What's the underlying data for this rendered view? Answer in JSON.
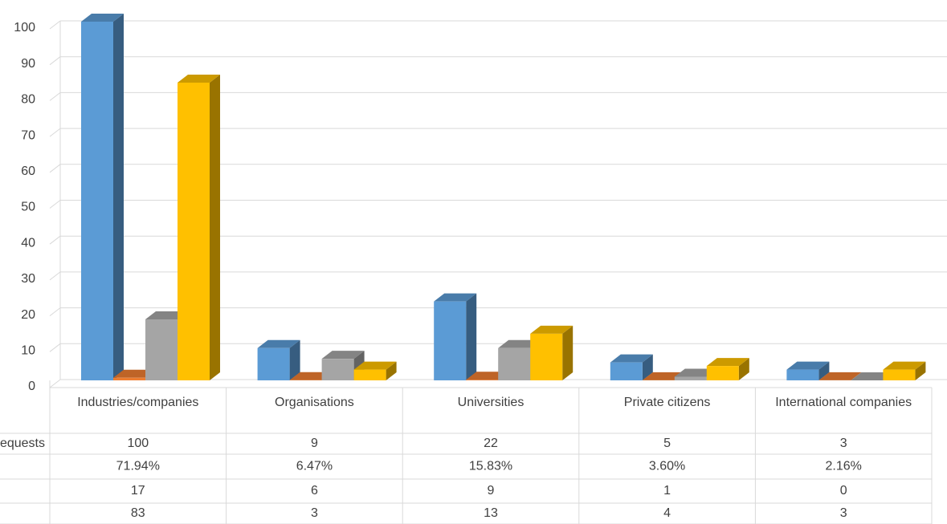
{
  "chart_data": {
    "type": "bar3d",
    "categories": [
      "Industries/companies",
      "Organisations",
      "Universities",
      "Private citizens",
      "International companies"
    ],
    "series": [
      {
        "name": "Requests",
        "color": "#5b9bd5",
        "values": [
          100,
          9,
          22,
          5,
          3
        ]
      },
      {
        "name": null,
        "color": "#ed7d31",
        "values": [
          0.7194,
          0.0647,
          0.1583,
          0.036,
          0.0216
        ],
        "value_labels": [
          "71.94%",
          "6.47%",
          "15.83%",
          "3.60%",
          "2.16%"
        ]
      },
      {
        "name": null,
        "color": "#a5a5a5",
        "values": [
          17,
          6,
          9,
          1,
          0
        ]
      },
      {
        "name": null,
        "color": "#ffc000",
        "values": [
          83,
          3,
          13,
          4,
          3
        ]
      }
    ],
    "ylim": [
      0,
      100
    ],
    "yticks": [
      0,
      10,
      20,
      30,
      40,
      50,
      60,
      70,
      80,
      90,
      100
    ],
    "grid": true,
    "data_table": true
  }
}
